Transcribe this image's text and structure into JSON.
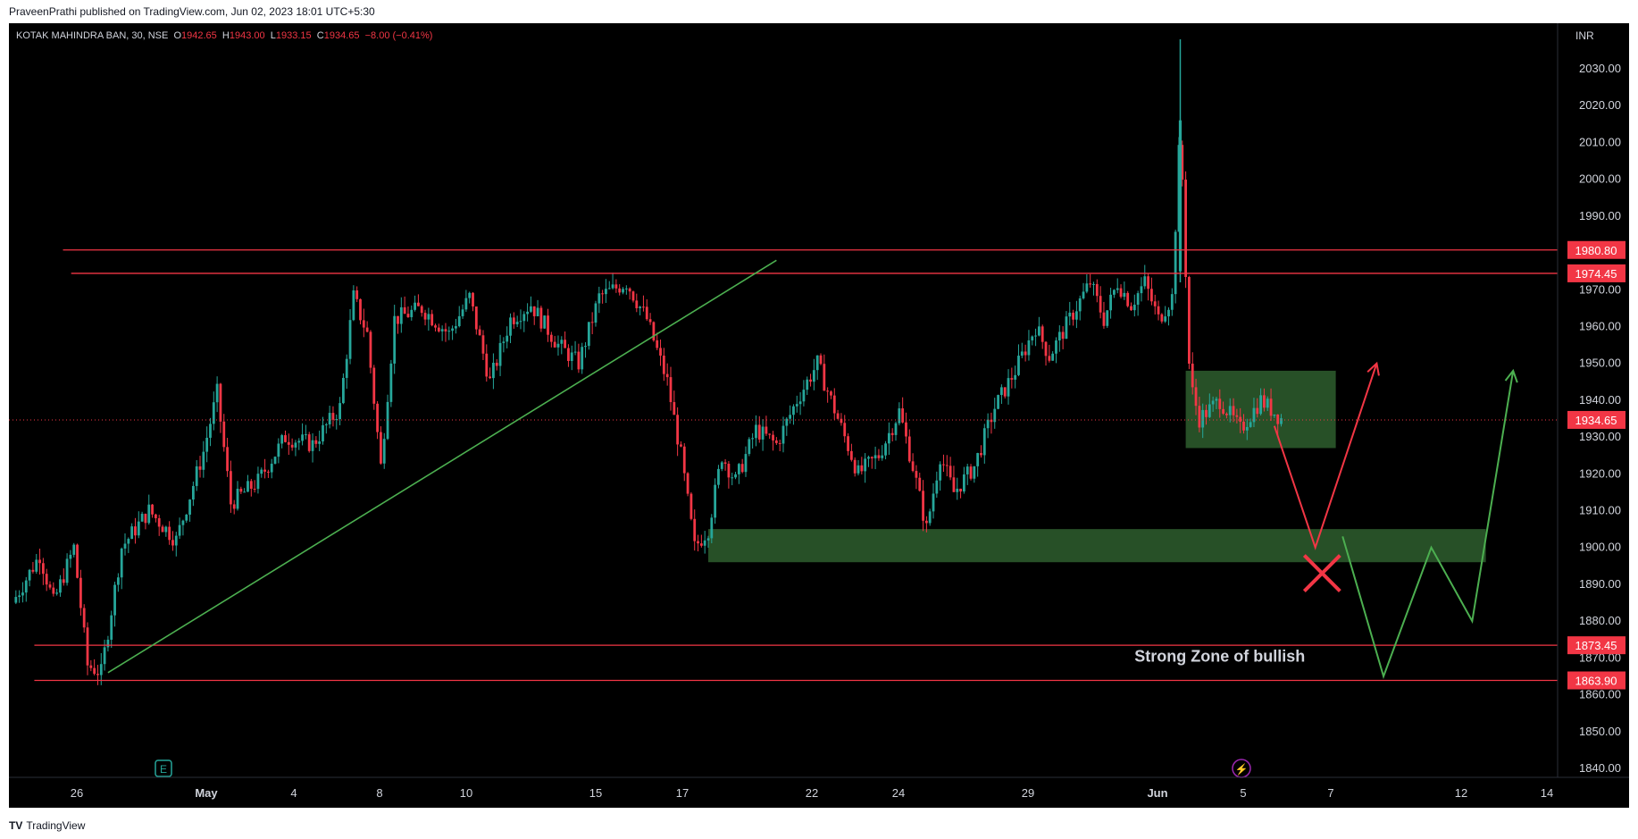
{
  "publisher": {
    "text": "PraveenPrathi published on TradingView.com, Jun 02, 2023 18:01 UTC+5:30"
  },
  "legend": {
    "symbol": "KOTAK MAHINDRA BAN, 30, NSE",
    "o_label": "O",
    "o_value": "1942.65",
    "h_label": "H",
    "h_value": "1943.00",
    "l_label": "L",
    "l_value": "1933.15",
    "c_label": "C",
    "c_value": "1934.65",
    "change": "−8.00 (−0.41%)"
  },
  "price_unit": "INR",
  "footer": {
    "brand": "TradingView",
    "logo_icon": "tradingview-logo-icon"
  },
  "colors": {
    "up": "#26a69a",
    "down": "#f23645",
    "level": "#f23645",
    "trend": "#4caf50",
    "zone": "#2e5e2e",
    "axis_text": "#d1d4dc"
  },
  "chart_data": {
    "type": "candlestick",
    "title": "KOTAK MAHINDRA BAN, 30, NSE",
    "ylim": [
      1835,
      2040
    ],
    "y_ticks": [
      1840,
      1850,
      1860,
      1870,
      1880,
      1890,
      1900,
      1910,
      1920,
      1930,
      1940,
      1950,
      1960,
      1970,
      1980,
      1990,
      2000,
      2010,
      2020,
      2030
    ],
    "x_ticks": [
      "26",
      "May",
      "4",
      "8",
      "10",
      "15",
      "17",
      "22",
      "24",
      "29",
      "Jun",
      "5",
      "7",
      "12",
      "14"
    ],
    "price_path": [
      {
        "t": 0,
        "v": 1885
      },
      {
        "t": 2,
        "v": 1898
      },
      {
        "t": 3,
        "v": 1885
      },
      {
        "t": 4.5,
        "v": 1900
      },
      {
        "t": 5.5,
        "v": 1868
      },
      {
        "t": 6.5,
        "v": 1866
      },
      {
        "t": 8,
        "v": 1900
      },
      {
        "t": 10,
        "v": 1910
      },
      {
        "t": 12,
        "v": 1902
      },
      {
        "t": 14,
        "v": 1926
      },
      {
        "t": 15,
        "v": 1942
      },
      {
        "t": 16,
        "v": 1912
      },
      {
        "t": 18,
        "v": 1918
      },
      {
        "t": 20,
        "v": 1930
      },
      {
        "t": 22,
        "v": 1928
      },
      {
        "t": 24,
        "v": 1938
      },
      {
        "t": 25,
        "v": 1968
      },
      {
        "t": 26,
        "v": 1958
      },
      {
        "t": 27,
        "v": 1922
      },
      {
        "t": 28,
        "v": 1962
      },
      {
        "t": 30,
        "v": 1965
      },
      {
        "t": 32,
        "v": 1958
      },
      {
        "t": 33.5,
        "v": 1968
      },
      {
        "t": 35,
        "v": 1945
      },
      {
        "t": 36.5,
        "v": 1962
      },
      {
        "t": 38,
        "v": 1966
      },
      {
        "t": 40,
        "v": 1955
      },
      {
        "t": 41.5,
        "v": 1950
      },
      {
        "t": 43,
        "v": 1968
      },
      {
        "t": 45,
        "v": 1972
      },
      {
        "t": 46.5,
        "v": 1962
      },
      {
        "t": 48,
        "v": 1945
      },
      {
        "t": 49,
        "v": 1925
      },
      {
        "t": 50,
        "v": 1900
      },
      {
        "t": 51,
        "v": 1905
      },
      {
        "t": 52,
        "v": 1925
      },
      {
        "t": 53,
        "v": 1918
      },
      {
        "t": 54.5,
        "v": 1932
      },
      {
        "t": 56,
        "v": 1928
      },
      {
        "t": 57.5,
        "v": 1940
      },
      {
        "t": 59,
        "v": 1950
      },
      {
        "t": 60.5,
        "v": 1935
      },
      {
        "t": 62,
        "v": 1920
      },
      {
        "t": 63.5,
        "v": 1925
      },
      {
        "t": 65,
        "v": 1937
      },
      {
        "t": 66,
        "v": 1922
      },
      {
        "t": 67,
        "v": 1905
      },
      {
        "t": 68,
        "v": 1925
      },
      {
        "t": 69,
        "v": 1915
      },
      {
        "t": 70.5,
        "v": 1922
      },
      {
        "t": 72,
        "v": 1938
      },
      {
        "t": 73.5,
        "v": 1948
      },
      {
        "t": 75,
        "v": 1960
      },
      {
        "t": 76,
        "v": 1952
      },
      {
        "t": 77.5,
        "v": 1962
      },
      {
        "t": 79,
        "v": 1972
      },
      {
        "t": 80,
        "v": 1962
      },
      {
        "t": 81,
        "v": 1972
      },
      {
        "t": 82,
        "v": 1966
      },
      {
        "t": 83,
        "v": 1972
      },
      {
        "t": 84,
        "v": 1962
      },
      {
        "t": 85,
        "v": 1968
      },
      {
        "t": 85.6,
        "v": 2015
      },
      {
        "t": 86.3,
        "v": 1945
      },
      {
        "t": 87,
        "v": 1935
      },
      {
        "t": 88.5,
        "v": 1940
      },
      {
        "t": 90,
        "v": 1932
      },
      {
        "t": 91.5,
        "v": 1940
      },
      {
        "t": 93,
        "v": 1935
      }
    ],
    "annotations": {
      "levels": [
        {
          "value": 1980.8,
          "label": "1980.80",
          "t_start": 3.7
        },
        {
          "value": 1974.45,
          "label": "1974.45",
          "t_start": 4.3
        },
        {
          "value": 1873.45,
          "label": "1873.45",
          "t_start": 1.6
        },
        {
          "value": 1863.9,
          "label": "1863.90",
          "t_start": 1.6
        }
      ],
      "last_price": {
        "value": 1934.65,
        "label": "1934.65"
      },
      "zones": [
        {
          "t1": 51,
          "t2": 108,
          "y1": 1896,
          "y2": 1905
        },
        {
          "t1": 86,
          "t2": 97,
          "y1": 1927,
          "y2": 1948
        }
      ],
      "trendline": {
        "t1": 7,
        "v1": 1866,
        "t2": 56,
        "v2": 1978
      },
      "text": "Strong Zone of bullish",
      "text_pos": {
        "t": 88.5,
        "v": 1869
      },
      "bearish_path": [
        {
          "t": 92.5,
          "v": 1933
        },
        {
          "t": 95.5,
          "v": 1900
        },
        {
          "t": 100,
          "v": 1950
        }
      ],
      "bullish_path": [
        {
          "t": 97.5,
          "v": 1903
        },
        {
          "t": 100.5,
          "v": 1865
        },
        {
          "t": 104,
          "v": 1900
        },
        {
          "t": 107,
          "v": 1880
        },
        {
          "t": 110,
          "v": 1948
        }
      ],
      "cross": {
        "t": 96,
        "v": 1893
      }
    }
  }
}
